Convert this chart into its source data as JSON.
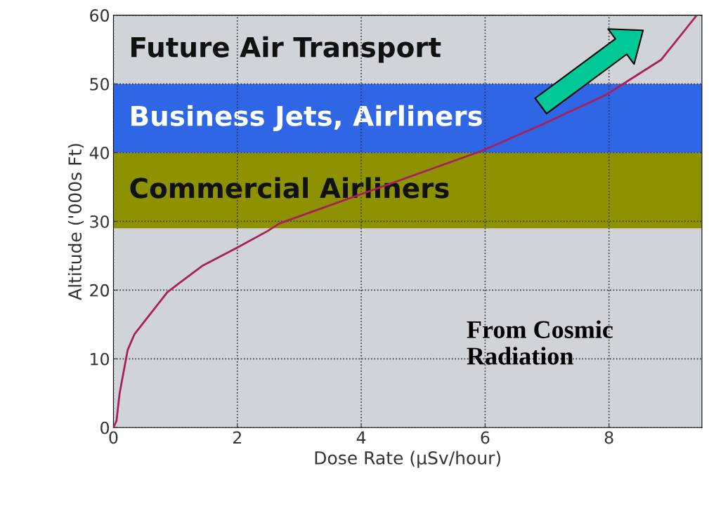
{
  "chart_data": {
    "type": "line",
    "xlabel": "Dose Rate (µSv/hour)",
    "ylabel": "Altitude ('000s Ft)",
    "x": [
      0,
      0.05,
      0.1,
      0.23,
      0.34,
      0.87,
      1.43,
      2.0,
      2.49,
      2.68,
      5.93,
      6.9,
      7.95,
      8.84,
      9.4
    ],
    "series": [
      {
        "color": "#a8205a",
        "values": [
          0,
          1,
          5,
          11.3,
          13.6,
          19.7,
          23.5,
          26.2,
          28.6,
          29.7,
          40.2,
          44,
          48.4,
          53.5,
          59.8
        ]
      }
    ],
    "xlim": [
      0,
      9.5
    ],
    "ylim": [
      0,
      60
    ],
    "xticks": [
      0,
      2,
      4,
      6,
      8
    ],
    "yticks": [
      0,
      10,
      20,
      30,
      40,
      50,
      60
    ],
    "grid": true,
    "line_style": "solid",
    "marker": "none",
    "bands": [
      {
        "axis": "y",
        "from": 29,
        "to": 40,
        "label": "Commercial Airliners",
        "color": "#8f9200"
      },
      {
        "axis": "y",
        "from": 40,
        "to": 50,
        "label": "Business Jets, Airliners",
        "color": "#2f66e6"
      },
      {
        "axis": "y",
        "from": 50,
        "to": 60,
        "label": "Future Air Transport",
        "color": "#d0d4d8"
      }
    ],
    "annotations": [
      {
        "text": "From Cosmic\nRadiation"
      }
    ]
  }
}
